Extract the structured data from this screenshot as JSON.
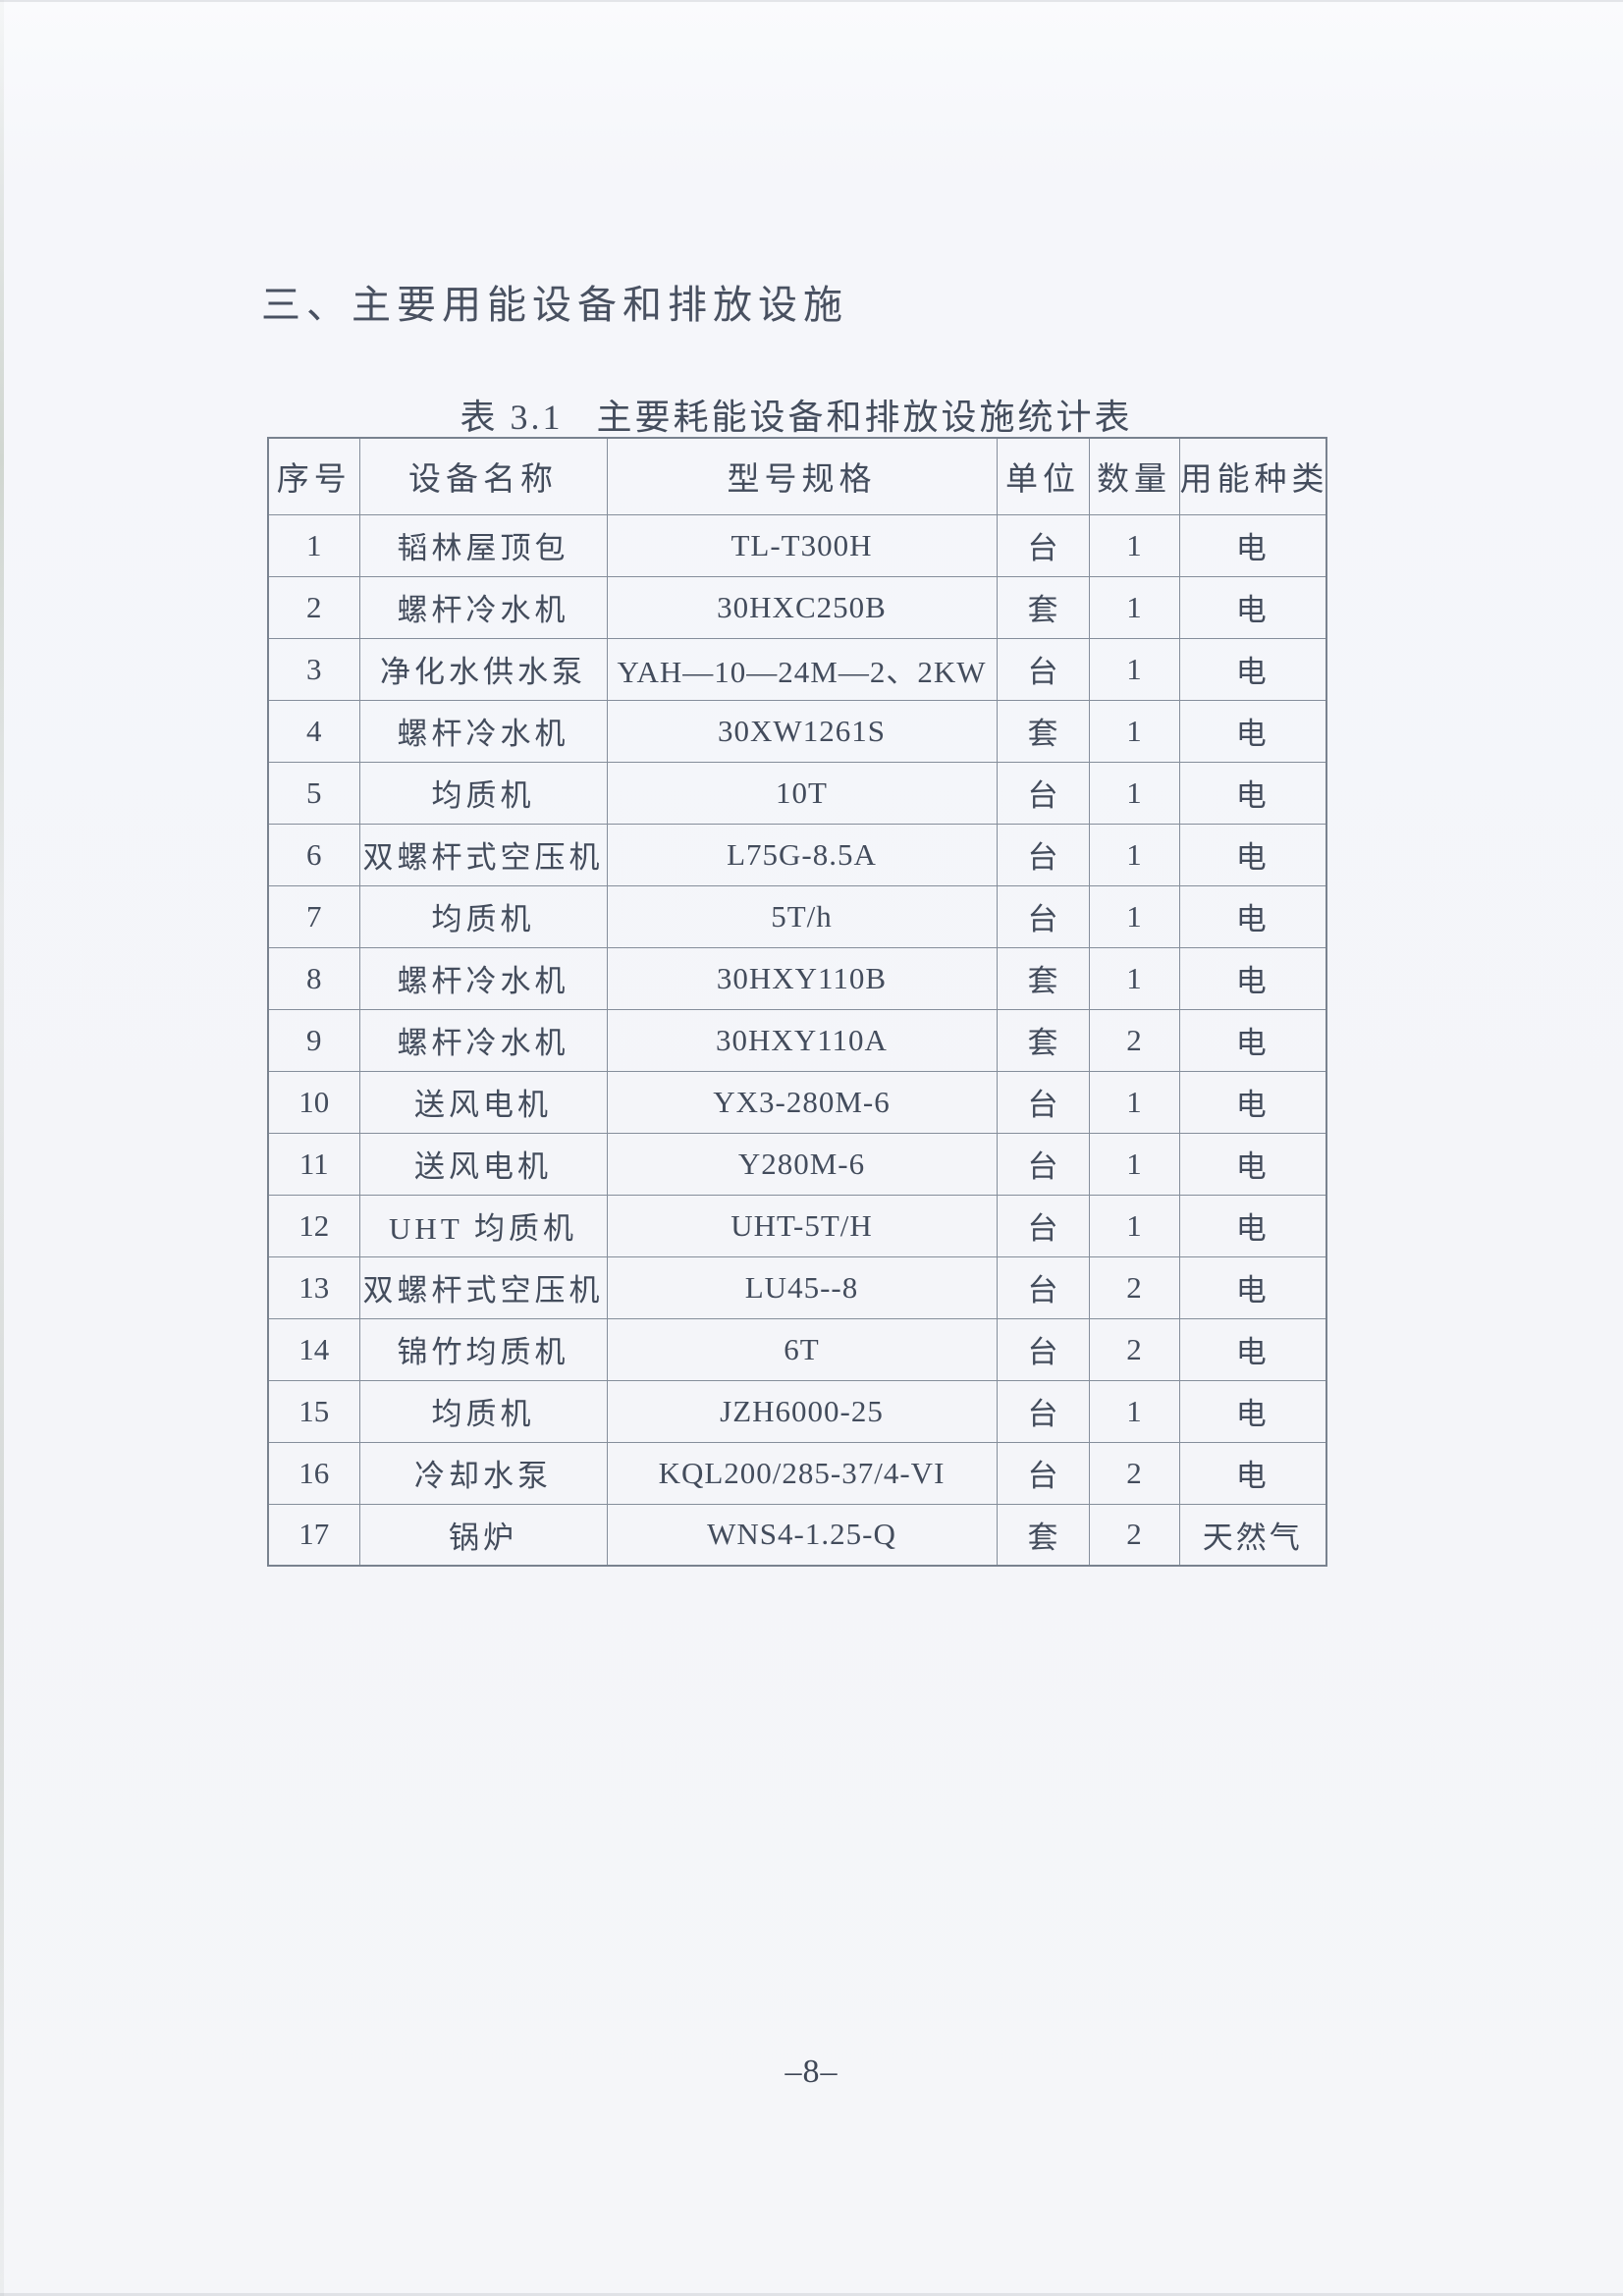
{
  "page": {
    "section_heading": "三、主要用能设备和排放设施",
    "table_caption_label": "表 3.1",
    "table_caption_title": "主要耗能设备和排放设施统计表",
    "page_number": "–8–"
  },
  "table": {
    "columns": [
      "序号",
      "设备名称",
      "型号规格",
      "单位",
      "数量",
      "用能种类"
    ],
    "rows": [
      {
        "no": "1",
        "name": "韬林屋顶包",
        "model": "TL-T300H",
        "unit": "台",
        "qty": "1",
        "energy": "电"
      },
      {
        "no": "2",
        "name": "螺杆冷水机",
        "model": "30HXC250B",
        "unit": "套",
        "qty": "1",
        "energy": "电"
      },
      {
        "no": "3",
        "name": "净化水供水泵",
        "model": "YAH—10—24M—2、2KW",
        "unit": "台",
        "qty": "1",
        "energy": "电"
      },
      {
        "no": "4",
        "name": "螺杆冷水机",
        "model": "30XW1261S",
        "unit": "套",
        "qty": "1",
        "energy": "电"
      },
      {
        "no": "5",
        "name": "均质机",
        "model": "10T",
        "unit": "台",
        "qty": "1",
        "energy": "电"
      },
      {
        "no": "6",
        "name": "双螺杆式空压机",
        "model": "L75G-8.5A",
        "unit": "台",
        "qty": "1",
        "energy": "电"
      },
      {
        "no": "7",
        "name": "均质机",
        "model": "5T/h",
        "unit": "台",
        "qty": "1",
        "energy": "电"
      },
      {
        "no": "8",
        "name": "螺杆冷水机",
        "model": "30HXY110B",
        "unit": "套",
        "qty": "1",
        "energy": "电"
      },
      {
        "no": "9",
        "name": "螺杆冷水机",
        "model": "30HXY110A",
        "unit": "套",
        "qty": "2",
        "energy": "电"
      },
      {
        "no": "10",
        "name": "送风电机",
        "model": "YX3-280M-6",
        "unit": "台",
        "qty": "1",
        "energy": "电"
      },
      {
        "no": "11",
        "name": "送风电机",
        "model": "Y280M-6",
        "unit": "台",
        "qty": "1",
        "energy": "电"
      },
      {
        "no": "12",
        "name": "UHT 均质机",
        "model": "UHT-5T/H",
        "unit": "台",
        "qty": "1",
        "energy": "电"
      },
      {
        "no": "13",
        "name": "双螺杆式空压机",
        "model": "LU45--8",
        "unit": "台",
        "qty": "2",
        "energy": "电"
      },
      {
        "no": "14",
        "name": "锦竹均质机",
        "model": "6T",
        "unit": "台",
        "qty": "2",
        "energy": "电"
      },
      {
        "no": "15",
        "name": "均质机",
        "model": "JZH6000-25",
        "unit": "台",
        "qty": "1",
        "energy": "电"
      },
      {
        "no": "16",
        "name": "冷却水泵",
        "model": "KQL200/285-37/4-VI",
        "unit": "台",
        "qty": "2",
        "energy": "电"
      },
      {
        "no": "17",
        "name": "锅炉",
        "model": "WNS4-1.25-Q",
        "unit": "套",
        "qty": "2",
        "energy": "天然气"
      }
    ]
  }
}
